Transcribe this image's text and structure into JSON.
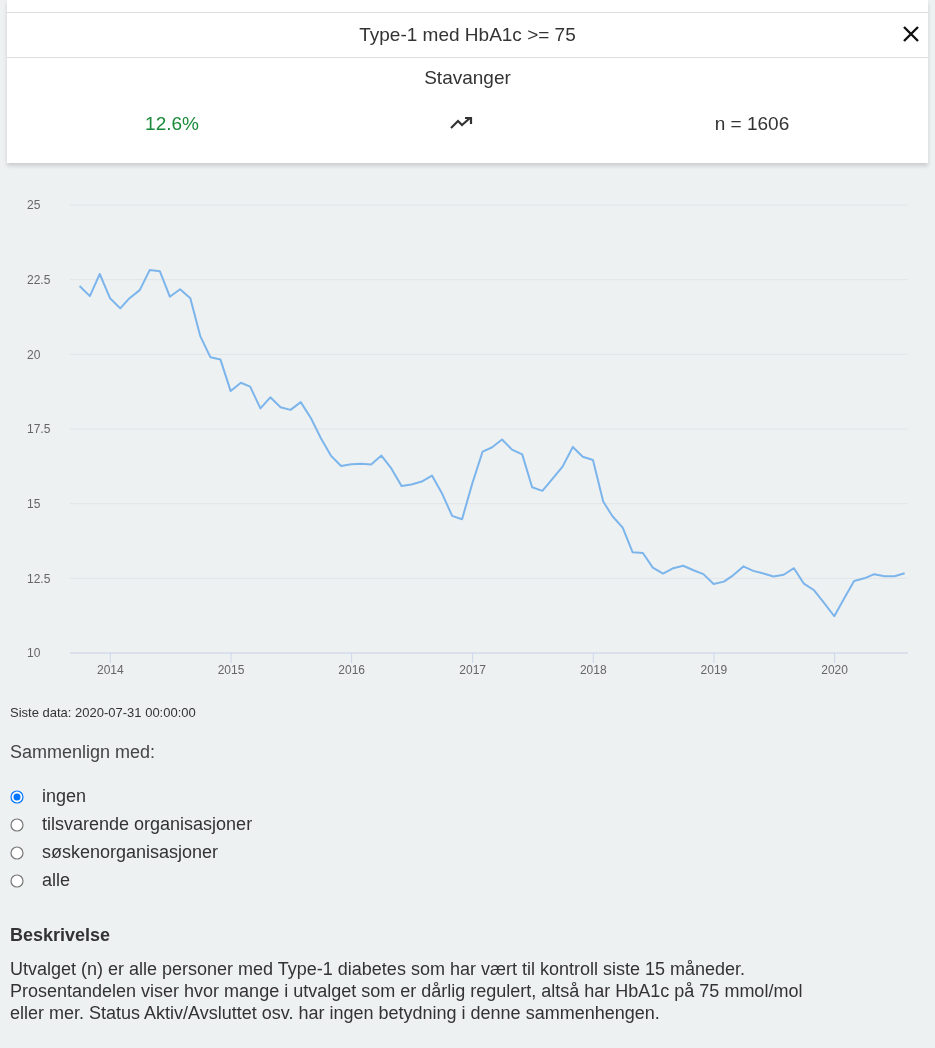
{
  "chart_data": {
    "type": "line",
    "title": "Type-1 med HbA1c >= 75",
    "subtitle": "Stavanger",
    "x": [
      "2013-09-30",
      "2013-10-31",
      "2013-11-30",
      "2013-12-31",
      "2014-01-31",
      "2014-02-28",
      "2014-03-31",
      "2014-04-30",
      "2014-05-31",
      "2014-06-30",
      "2014-07-31",
      "2014-08-31",
      "2014-09-30",
      "2014-10-31",
      "2014-11-30",
      "2014-12-31",
      "2015-01-31",
      "2015-02-28",
      "2015-03-31",
      "2015-04-30",
      "2015-05-31",
      "2015-06-30",
      "2015-07-31",
      "2015-08-31",
      "2015-09-30",
      "2015-10-31",
      "2015-11-30",
      "2015-12-31",
      "2016-01-31",
      "2016-02-29",
      "2016-03-31",
      "2016-04-30",
      "2016-05-31",
      "2016-06-30",
      "2016-07-31",
      "2016-08-31",
      "2016-09-30",
      "2016-10-31",
      "2016-11-30",
      "2016-12-31",
      "2017-01-31",
      "2017-02-28",
      "2017-03-31",
      "2017-04-30",
      "2017-05-31",
      "2017-06-30",
      "2017-07-31",
      "2017-08-31",
      "2017-09-30",
      "2017-10-31",
      "2017-11-30",
      "2017-12-31",
      "2018-01-31",
      "2018-02-28",
      "2018-03-31",
      "2018-04-30",
      "2018-05-31",
      "2018-06-30",
      "2018-07-31",
      "2018-08-31",
      "2018-09-30",
      "2018-10-31",
      "2018-11-30",
      "2018-12-31",
      "2019-01-31",
      "2019-02-28",
      "2019-03-31",
      "2019-04-30",
      "2019-05-31",
      "2019-06-30",
      "2019-07-31",
      "2019-08-31",
      "2019-09-30",
      "2019-10-31",
      "2019-11-30",
      "2019-12-31",
      "2020-01-31",
      "2020-02-29",
      "2020-03-31",
      "2020-04-30",
      "2020-05-31",
      "2020-06-30",
      "2020-07-31"
    ],
    "series": [
      {
        "color": "#7cb5ec",
        "values": [
          22.29,
          21.95,
          22.69,
          21.88,
          21.54,
          21.88,
          22.15,
          22.82,
          22.78,
          21.93,
          22.18,
          21.88,
          20.61,
          19.9,
          19.83,
          18.77,
          19.05,
          18.92,
          18.19,
          18.56,
          18.23,
          18.14,
          18.4,
          17.86,
          17.19,
          16.6,
          16.26,
          16.32,
          16.34,
          16.31,
          16.61,
          16.18,
          15.59,
          15.64,
          15.74,
          15.94,
          15.35,
          14.59,
          14.48,
          15.68,
          16.74,
          16.88,
          17.15,
          16.81,
          16.65,
          15.55,
          15.43,
          15.84,
          16.24,
          16.9,
          16.57,
          16.46,
          15.07,
          14.58,
          14.2,
          13.37,
          13.35,
          12.86,
          12.66,
          12.84,
          12.92,
          12.77,
          12.64,
          12.31,
          12.39,
          12.6,
          12.9,
          12.75,
          12.66,
          12.56,
          12.62,
          12.84,
          12.32,
          12.1,
          11.68,
          11.23,
          11.85,
          12.41,
          12.5,
          12.64,
          12.57,
          12.57,
          12.67
        ]
      }
    ],
    "xlim": [
      "2013-09-01",
      "2020-08-10"
    ],
    "xticks": [
      {
        "value": "2014",
        "label": "2014"
      },
      {
        "value": "2015",
        "label": "2015"
      },
      {
        "value": "2016",
        "label": "2016"
      },
      {
        "value": "2017",
        "label": "2017"
      },
      {
        "value": "2018",
        "label": "2018"
      },
      {
        "value": "2019",
        "label": "2019"
      },
      {
        "value": "2020",
        "label": "2020"
      }
    ],
    "ylim": [
      10,
      25
    ],
    "yticks": [
      10,
      12.5,
      15,
      17.5,
      20,
      22.5,
      25
    ],
    "grid": "y",
    "legend": false,
    "marker": "none",
    "line_style": "solid",
    "annotations": [
      "12.6%",
      "n = 1606",
      "Siste data: 2020-07-31 00:00:00",
      "Sammenlign med:",
      "ingen",
      "tilsvarende organisasjoner",
      "søskenorganisasjoner",
      "alle",
      "Beskrivelse",
      "Utvalget (n) er alle personer med Type-1 diabetes som har vært til kontroll siste 15 måneder. Prosentandelen viser hvor mange i utvalget som er dårlig regulert, altså har HbA1c på 75 mmol/mol eller mer. Status Aktiv/Avsluttet osv. har ingen betydning i denne sammenhengen."
    ]
  }
}
